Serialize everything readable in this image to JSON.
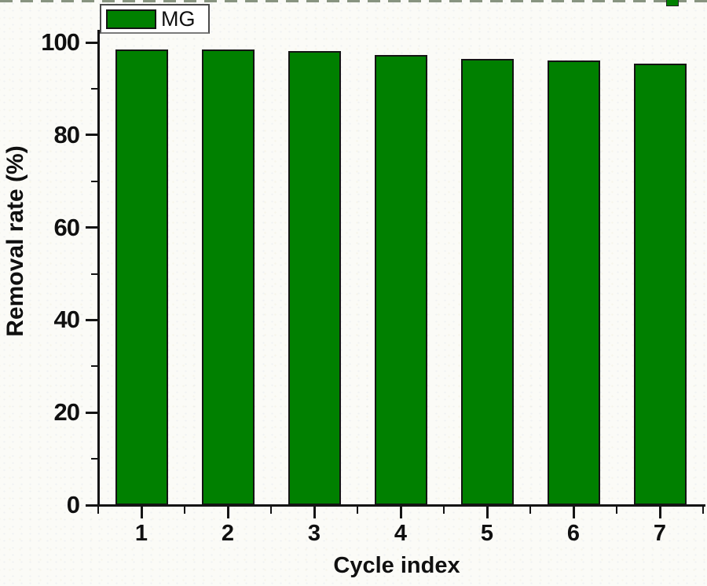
{
  "chart_data": {
    "type": "bar",
    "title": "",
    "categories": [
      "1",
      "2",
      "3",
      "4",
      "5",
      "6",
      "7"
    ],
    "series": [
      {
        "name": "MG",
        "color": "#008000",
        "values": [
          98.5,
          98.4,
          98.1,
          97.3,
          96.5,
          96.1,
          95.5
        ]
      }
    ],
    "xlabel": "Cycle index",
    "ylabel": "Removal rate (%)",
    "ylim": [
      0,
      103
    ],
    "y_major_ticks": [
      0,
      20,
      40,
      60,
      80,
      100
    ],
    "y_minor_ticks": [
      10,
      30,
      50,
      70,
      90
    ],
    "grid": false,
    "legend_position": "top-left"
  },
  "legend": {
    "label": "MG",
    "swatch_color": "#008000"
  },
  "axes": {
    "x_title": "Cycle index",
    "y_title": "Removal rate (%)"
  },
  "colors": {
    "bar_fill": "#008000",
    "bar_border": "#141414",
    "axis": "#141414",
    "text": "#101010",
    "background": "#fbfbf7"
  }
}
